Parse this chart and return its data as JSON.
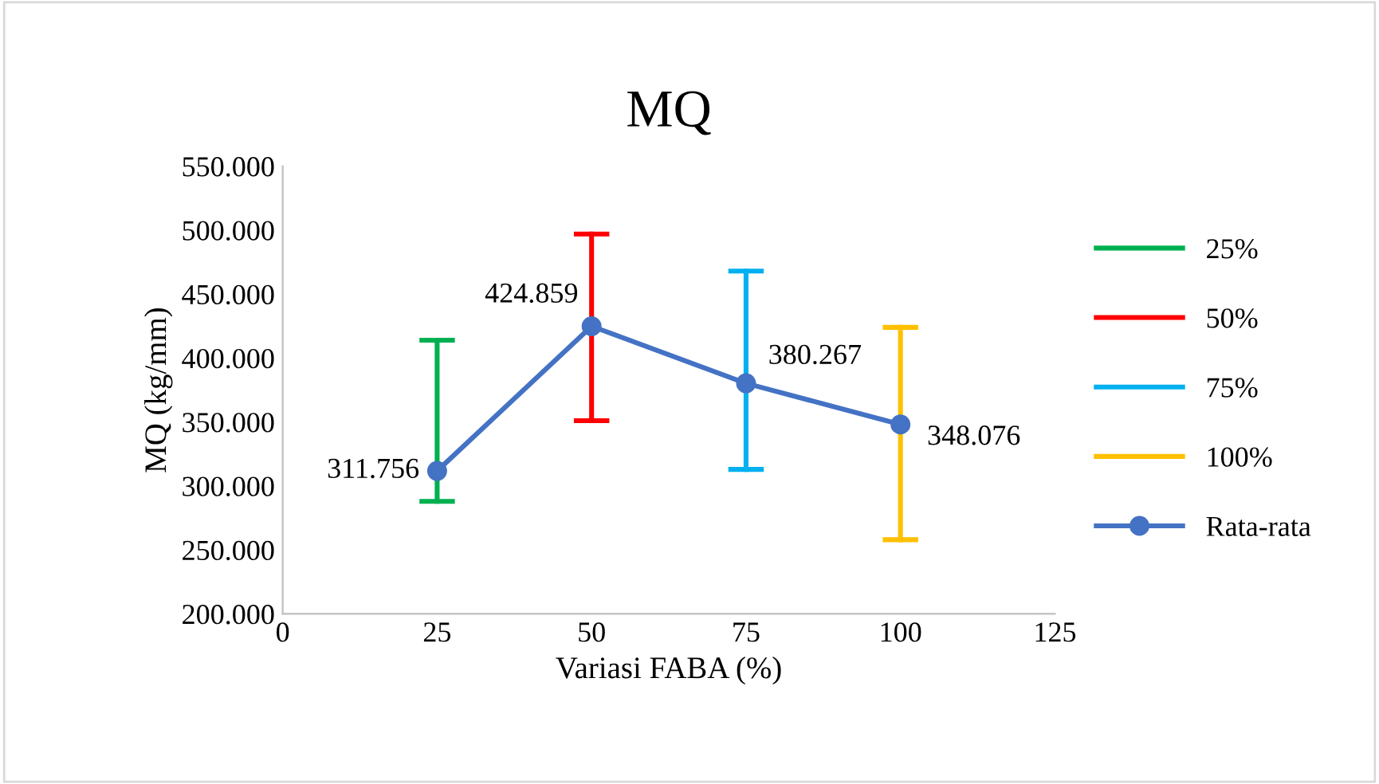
{
  "chart_data": {
    "type": "line",
    "title": "MQ",
    "xlabel": "Variasi FABA (%)",
    "ylabel": "MQ (kg/mm)",
    "xlim": [
      0,
      125
    ],
    "xticks": [
      0,
      25,
      50,
      75,
      100,
      125
    ],
    "ylim": [
      200000,
      550000
    ],
    "yticks": [
      {
        "value": 200000,
        "label": "200.000"
      },
      {
        "value": 250000,
        "label": "250.000"
      },
      {
        "value": 300000,
        "label": "300.000"
      },
      {
        "value": 350000,
        "label": "350.000"
      },
      {
        "value": 400000,
        "label": "400.000"
      },
      {
        "value": 450000,
        "label": "450.000"
      },
      {
        "value": 500000,
        "label": "500.000"
      },
      {
        "value": 550000,
        "label": "550.000"
      }
    ],
    "grid": false,
    "legend": "right",
    "series": [
      {
        "name": "25%",
        "color": "#00b050",
        "x": [
          25,
          25
        ],
        "values": [
          288000,
          414000
        ],
        "line_style": "solid"
      },
      {
        "name": "50%",
        "color": "#ff0000",
        "x": [
          50,
          50
        ],
        "values": [
          351000,
          497000
        ],
        "line_style": "solid"
      },
      {
        "name": "75%",
        "color": "#00b0f0",
        "x": [
          75,
          75
        ],
        "values": [
          313000,
          468000
        ],
        "line_style": "solid"
      },
      {
        "name": "100%",
        "color": "#ffc000",
        "x": [
          100,
          100
        ],
        "values": [
          258000,
          424000
        ],
        "line_style": "solid"
      },
      {
        "name": "Rata-rata",
        "color": "#4472c4",
        "x": [
          25,
          50,
          75,
          100
        ],
        "values": [
          311756,
          424859,
          380267,
          348076
        ],
        "value_labels": [
          "311.756",
          "424.859",
          "380.267",
          "348.076"
        ],
        "marker": "circle",
        "line_style": "solid"
      }
    ]
  }
}
